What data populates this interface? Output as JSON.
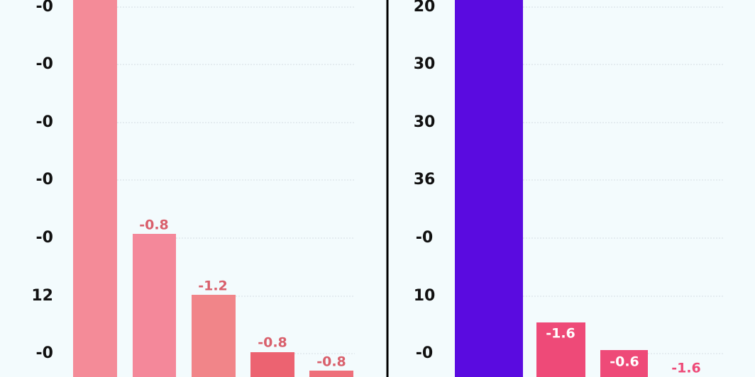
{
  "left_panel": {
    "y_labels": [
      "-0",
      "-0",
      "-0",
      "-0",
      "-0",
      "12",
      "-0"
    ],
    "bar_labels": [
      "-0.8",
      "-1.2",
      "-0.8",
      "-0.8"
    ]
  },
  "right_panel": {
    "y_labels": [
      "20",
      "30",
      "30",
      "36",
      "-0",
      "10",
      "-0"
    ],
    "bar_labels": [
      "-1.6",
      "-0.6",
      "-1.6"
    ]
  }
}
